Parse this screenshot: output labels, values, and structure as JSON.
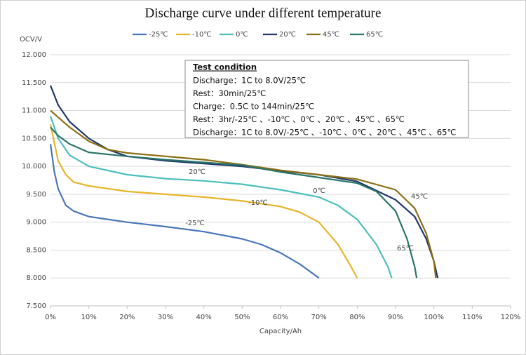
{
  "chart_data": {
    "type": "line",
    "title": "Discharge curve under different temperature",
    "y_label": "OCV/V",
    "x_label": "Capacity/Ah",
    "xlim": [
      0,
      120
    ],
    "xticks": [
      {
        "value": 0,
        "label": "0%"
      },
      {
        "value": 10,
        "label": "10%"
      },
      {
        "value": 20,
        "label": "20%"
      },
      {
        "value": 30,
        "label": "30%"
      },
      {
        "value": 40,
        "label": "40%"
      },
      {
        "value": 50,
        "label": "50%"
      },
      {
        "value": 60,
        "label": "60%"
      },
      {
        "value": 70,
        "label": "70%"
      },
      {
        "value": 80,
        "label": "80%"
      },
      {
        "value": 90,
        "label": "90%"
      },
      {
        "value": 100,
        "label": "100%"
      },
      {
        "value": 110,
        "label": "110%"
      },
      {
        "value": 120,
        "label": "120%"
      }
    ],
    "ylim": [
      7.5,
      12.0
    ],
    "yticks": [
      {
        "value": 7.5,
        "label": "7.500"
      },
      {
        "value": 8.0,
        "label": "8.000"
      },
      {
        "value": 8.5,
        "label": "8.500"
      },
      {
        "value": 9.0,
        "label": "9.000"
      },
      {
        "value": 9.5,
        "label": "9.500"
      },
      {
        "value": 10.0,
        "label": "10.000"
      },
      {
        "value": 10.5,
        "label": "10.500"
      },
      {
        "value": 11.0,
        "label": "11.000"
      },
      {
        "value": 11.5,
        "label": "11.500"
      },
      {
        "value": 12.0,
        "label": "12.000"
      }
    ],
    "grid": true,
    "legend": "top",
    "series": [
      {
        "name": "-25℃",
        "color": "#4a76bf",
        "x": [
          0,
          1,
          2,
          4,
          6,
          10,
          20,
          30,
          40,
          50,
          55,
          60,
          65,
          70
        ],
        "values": [
          10.4,
          9.9,
          9.6,
          9.3,
          9.2,
          9.1,
          9.0,
          8.92,
          8.83,
          8.7,
          8.6,
          8.45,
          8.25,
          8.0
        ]
      },
      {
        "name": "-10℃",
        "color": "#e8b52a",
        "x": [
          0,
          2,
          4,
          6,
          10,
          20,
          30,
          40,
          50,
          60,
          65,
          70,
          75,
          78,
          80
        ],
        "values": [
          10.75,
          10.1,
          9.85,
          9.72,
          9.65,
          9.55,
          9.5,
          9.45,
          9.38,
          9.28,
          9.18,
          9.0,
          8.6,
          8.25,
          8.0
        ]
      },
      {
        "name": "0℃",
        "color": "#4cbfbd",
        "x": [
          0,
          2,
          5,
          10,
          20,
          30,
          40,
          50,
          60,
          70,
          75,
          80,
          85,
          88,
          89
        ],
        "values": [
          10.9,
          10.5,
          10.2,
          10.0,
          9.85,
          9.78,
          9.74,
          9.68,
          9.58,
          9.45,
          9.3,
          9.05,
          8.6,
          8.2,
          8.0
        ]
      },
      {
        "name": "20℃",
        "color": "#22386b",
        "x": [
          0,
          2,
          5,
          10,
          15,
          20,
          30,
          40,
          50,
          60,
          70,
          80,
          90,
          95,
          98,
          100,
          101
        ],
        "values": [
          11.45,
          11.1,
          10.8,
          10.5,
          10.3,
          10.18,
          10.1,
          10.05,
          10.0,
          9.92,
          9.85,
          9.73,
          9.4,
          9.1,
          8.7,
          8.3,
          8.0
        ]
      },
      {
        "name": "45℃",
        "color": "#8c6e14",
        "x": [
          0,
          5,
          10,
          15,
          20,
          30,
          40,
          50,
          60,
          70,
          80,
          90,
          95,
          98,
          100,
          100.5
        ],
        "values": [
          11.0,
          10.7,
          10.45,
          10.3,
          10.24,
          10.18,
          10.12,
          10.03,
          9.93,
          9.85,
          9.77,
          9.58,
          9.25,
          8.8,
          8.3,
          8.0
        ]
      },
      {
        "name": "65℃",
        "color": "#2a7568",
        "x": [
          0,
          2,
          5,
          10,
          20,
          30,
          40,
          50,
          60,
          70,
          80,
          85,
          90,
          93,
          95,
          95.5
        ],
        "values": [
          10.7,
          10.55,
          10.4,
          10.25,
          10.18,
          10.12,
          10.07,
          10.02,
          9.9,
          9.8,
          9.7,
          9.55,
          9.2,
          8.7,
          8.2,
          8.0
        ]
      }
    ],
    "annotations": [
      {
        "text": "20℃",
        "color": "#22386b"
      },
      {
        "text": "0℃",
        "color": "#4cbfbd"
      },
      {
        "text": "-10℃",
        "color": "#e8b52a"
      },
      {
        "text": "-25℃",
        "color": "#4a76bf"
      },
      {
        "text": "45℃",
        "color": "#8c6e14"
      },
      {
        "text": "65℃",
        "color": "#2a7568"
      }
    ],
    "text_box": {
      "title": "Test condition",
      "lines": [
        "Discharge：1C to 8.0V/25℃",
        "Rest：30min/25℃",
        "Charge：0.5C to 144min/25℃",
        "Rest：3hr/-25℃ 、-10℃ 、0℃ 、20℃ 、45℃ 、65℃",
        "Discharge：1C to 8.0V/-25℃ 、-10℃ 、0℃ 、20℃ 、45℃ 、65℃"
      ]
    }
  }
}
